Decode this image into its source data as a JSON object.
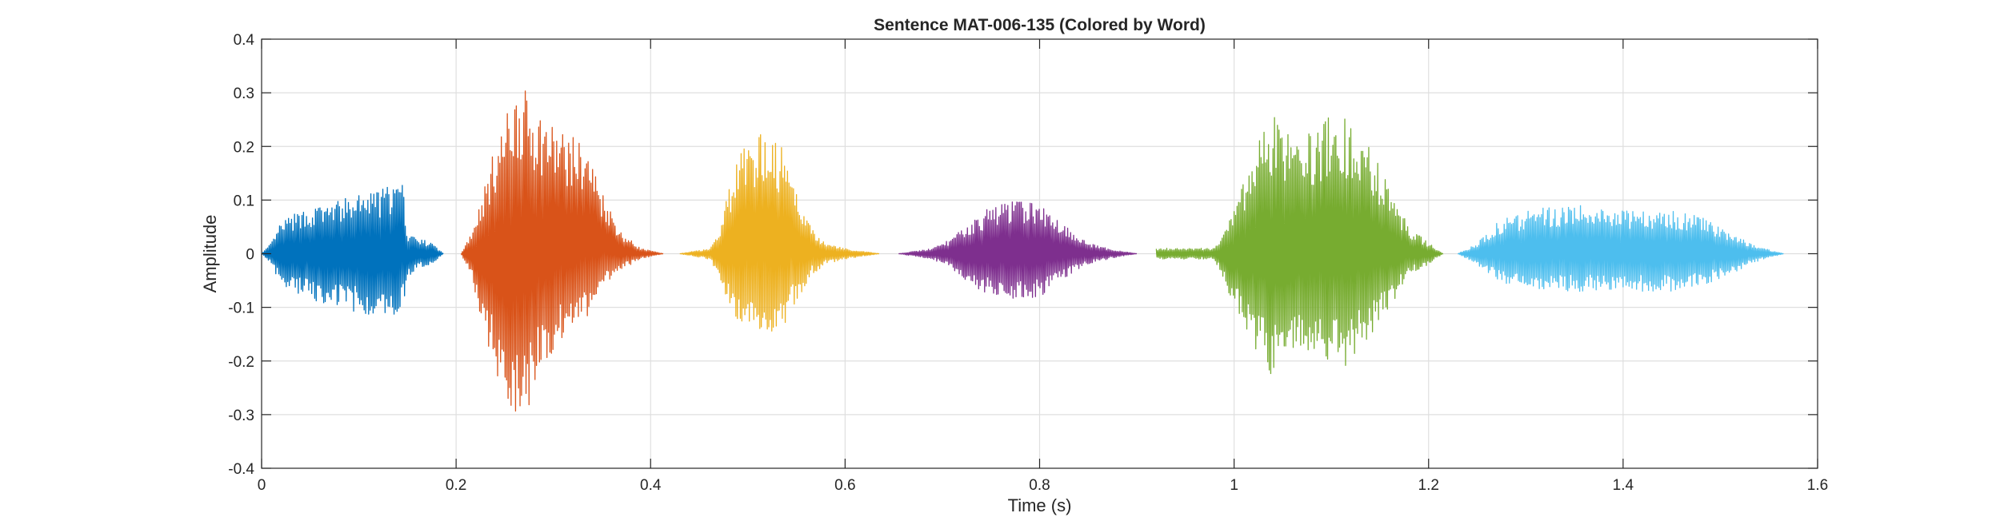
{
  "chart_data": {
    "type": "line",
    "title": "Sentence MAT-006-135 (Colored by Word)",
    "xlabel": "Time (s)",
    "ylabel": "Amplitude",
    "xlim": [
      0,
      1.6
    ],
    "ylim": [
      -0.4,
      0.4
    ],
    "xticks": [
      0,
      0.2,
      0.4,
      0.6,
      0.8,
      1,
      1.2,
      1.4,
      1.6
    ],
    "xtick_labels": [
      "0",
      "0.2",
      "0.4",
      "0.6",
      "0.8",
      "1",
      "1.2",
      "1.4",
      "1.6"
    ],
    "yticks": [
      -0.4,
      -0.3,
      -0.2,
      -0.1,
      0,
      0.1,
      0.2,
      0.3,
      0.4
    ],
    "ytick_labels": [
      "-0.4",
      "-0.3",
      "-0.2",
      "-0.1",
      "0",
      "0.1",
      "0.2",
      "0.3",
      "0.4"
    ],
    "grid": true,
    "legend": "none",
    "series": [
      {
        "color": "#0072BD",
        "t_start": 0.0,
        "t_end": 0.187,
        "envelope_t": [
          0.0,
          0.01,
          0.02,
          0.04,
          0.06,
          0.08,
          0.1,
          0.12,
          0.135,
          0.145,
          0.15,
          0.16,
          0.175,
          0.187
        ],
        "envelope_pos": [
          0.0,
          0.02,
          0.06,
          0.08,
          0.09,
          0.1,
          0.11,
          0.12,
          0.13,
          0.13,
          0.04,
          0.03,
          0.02,
          0.0
        ],
        "envelope_neg": [
          0.0,
          -0.02,
          -0.06,
          -0.08,
          -0.09,
          -0.1,
          -0.11,
          -0.12,
          -0.12,
          -0.1,
          -0.05,
          -0.03,
          -0.02,
          0.0
        ]
      },
      {
        "color": "#D95319",
        "t_start": 0.205,
        "t_end": 0.413,
        "envelope_t": [
          0.205,
          0.215,
          0.225,
          0.24,
          0.255,
          0.265,
          0.28,
          0.3,
          0.32,
          0.335,
          0.35,
          0.37,
          0.39,
          0.413
        ],
        "envelope_pos": [
          0.0,
          0.04,
          0.1,
          0.2,
          0.28,
          0.32,
          0.28,
          0.24,
          0.22,
          0.2,
          0.12,
          0.04,
          0.01,
          0.0
        ],
        "envelope_neg": [
          0.0,
          -0.04,
          -0.12,
          -0.22,
          -0.3,
          -0.33,
          -0.26,
          -0.18,
          -0.15,
          -0.12,
          -0.06,
          -0.03,
          -0.01,
          0.0
        ]
      },
      {
        "color": "#EDB120",
        "t_start": 0.43,
        "t_end": 0.635,
        "envelope_t": [
          0.43,
          0.46,
          0.47,
          0.48,
          0.49,
          0.505,
          0.52,
          0.535,
          0.55,
          0.565,
          0.58,
          0.6,
          0.635
        ],
        "envelope_pos": [
          0.0,
          0.01,
          0.04,
          0.12,
          0.18,
          0.22,
          0.23,
          0.2,
          0.12,
          0.05,
          0.02,
          0.01,
          0.0
        ],
        "envelope_neg": [
          0.0,
          -0.01,
          -0.04,
          -0.1,
          -0.13,
          -0.15,
          -0.15,
          -0.14,
          -0.09,
          -0.04,
          -0.02,
          -0.01,
          0.0
        ]
      },
      {
        "color": "#7E2F8E",
        "t_start": 0.655,
        "t_end": 0.9,
        "envelope_t": [
          0.655,
          0.69,
          0.71,
          0.73,
          0.75,
          0.77,
          0.79,
          0.81,
          0.83,
          0.85,
          0.87,
          0.9
        ],
        "envelope_pos": [
          0.0,
          0.01,
          0.03,
          0.06,
          0.09,
          0.1,
          0.1,
          0.08,
          0.05,
          0.02,
          0.01,
          0.0
        ],
        "envelope_neg": [
          0.0,
          -0.01,
          -0.03,
          -0.06,
          -0.08,
          -0.09,
          -0.09,
          -0.07,
          -0.04,
          -0.02,
          -0.01,
          0.0
        ]
      },
      {
        "color": "#77AC30",
        "t_start": 0.92,
        "t_end": 1.215,
        "envelope_t": [
          0.92,
          0.95,
          0.98,
          1.0,
          1.02,
          1.04,
          1.06,
          1.08,
          1.1,
          1.12,
          1.14,
          1.16,
          1.18,
          1.2,
          1.215
        ],
        "envelope_pos": [
          0.01,
          0.01,
          0.01,
          0.08,
          0.2,
          0.26,
          0.22,
          0.23,
          0.26,
          0.25,
          0.2,
          0.12,
          0.05,
          0.02,
          0.0
        ],
        "envelope_neg": [
          -0.01,
          -0.01,
          -0.01,
          -0.1,
          -0.18,
          -0.23,
          -0.2,
          -0.19,
          -0.22,
          -0.21,
          -0.16,
          -0.1,
          -0.04,
          -0.02,
          0.0
        ]
      },
      {
        "color": "#4DBEEE",
        "t_start": 1.23,
        "t_end": 1.565,
        "envelope_t": [
          1.23,
          1.25,
          1.27,
          1.3,
          1.33,
          1.36,
          1.39,
          1.42,
          1.45,
          1.48,
          1.51,
          1.53,
          1.545,
          1.565
        ],
        "envelope_pos": [
          0.0,
          0.02,
          0.06,
          0.08,
          0.09,
          0.09,
          0.08,
          0.08,
          0.08,
          0.07,
          0.04,
          0.02,
          0.01,
          0.0
        ],
        "envelope_neg": [
          0.0,
          -0.02,
          -0.05,
          -0.07,
          -0.07,
          -0.07,
          -0.07,
          -0.07,
          -0.07,
          -0.06,
          -0.04,
          -0.02,
          -0.01,
          0.0
        ]
      }
    ]
  }
}
